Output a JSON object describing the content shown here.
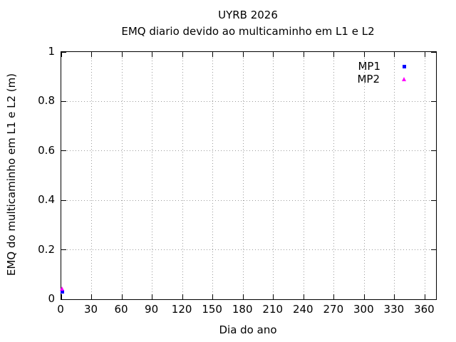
{
  "chart_data": {
    "type": "scatter",
    "title": "UYRB 2026",
    "subtitle": "EMQ diario devido ao multicaminho em L1 e L2",
    "xlabel": "Dia do ano",
    "ylabel": "EMQ do multicaminho em L1 e L2 (m)",
    "xlim": [
      0,
      371
    ],
    "ylim": [
      0,
      1
    ],
    "xticks": [
      0,
      30,
      60,
      90,
      120,
      150,
      180,
      210,
      240,
      270,
      300,
      330,
      360
    ],
    "yticks": [
      0,
      0.2,
      0.4,
      0.6,
      0.8,
      1
    ],
    "xtick_labels": [
      "0",
      "30",
      "60",
      "90",
      "120",
      "150",
      "180",
      "210",
      "240",
      "270",
      "300",
      "330",
      "360"
    ],
    "ytick_labels": [
      "0",
      "0.2",
      "0.4",
      "0.6",
      "0.8",
      "1"
    ],
    "grid": true,
    "legend_position": "top-right-inside",
    "series": [
      {
        "name": "MP1",
        "marker": "square",
        "color": "#0000ff",
        "points": [
          {
            "x": 1,
            "y": 0.03
          }
        ]
      },
      {
        "name": "MP2",
        "marker": "triangle",
        "color": "#ff00ff",
        "points": [
          {
            "x": 1,
            "y": 0.042
          }
        ]
      }
    ]
  },
  "colors": {
    "background": "#ffffff",
    "plot_border": "#000000",
    "grid": "#9a9a9a",
    "mp1": "#0000ff",
    "mp2": "#ff00ff"
  }
}
